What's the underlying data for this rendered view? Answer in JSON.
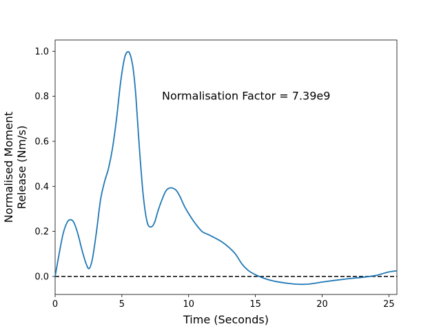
{
  "chart_data": {
    "type": "line",
    "title": "",
    "xlabel": "Time (Seconds)",
    "ylabel_lines": [
      "Normalised Moment",
      "Release (Nm/s)"
    ],
    "xlim": [
      0,
      25.6
    ],
    "ylim": [
      -0.08,
      1.05
    ],
    "xticks": [
      0,
      5,
      10,
      15,
      20,
      25
    ],
    "yticks": [
      0.0,
      0.2,
      0.4,
      0.6,
      0.8,
      1.0
    ],
    "ytick_labels": [
      "0.0",
      "0.2",
      "0.4",
      "0.6",
      "0.8",
      "1.0"
    ],
    "grid": false,
    "annotation": {
      "text": "Normalisation Factor = 7.39e9",
      "x": 8.0,
      "y": 0.8
    },
    "reference_line": {
      "y": 0.0,
      "style": "dashed",
      "color": "#000000"
    },
    "series": [
      {
        "color": "#1f77b4",
        "x": [
          0,
          0.3,
          0.6,
          0.9,
          1.15,
          1.4,
          1.7,
          2.0,
          2.3,
          2.55,
          2.8,
          3.1,
          3.4,
          3.7,
          4.0,
          4.3,
          4.6,
          4.9,
          5.2,
          5.45,
          5.65,
          5.85,
          6.05,
          6.3,
          6.6,
          6.9,
          7.2,
          7.45,
          7.7,
          8.0,
          8.3,
          8.6,
          8.9,
          9.1,
          9.35,
          9.7,
          10.1,
          10.5,
          11.0,
          11.5,
          12.0,
          12.5,
          13.0,
          13.5,
          14.0,
          14.5,
          15.0,
          15.5,
          16.0,
          16.5,
          17.0,
          17.5,
          18.0,
          18.5,
          19.0,
          19.5,
          20.0,
          21.0,
          22.0,
          23.0,
          24.0,
          24.5,
          25.0,
          25.6
        ],
        "y": [
          0.0,
          0.1,
          0.19,
          0.24,
          0.252,
          0.24,
          0.19,
          0.12,
          0.06,
          0.035,
          0.08,
          0.2,
          0.34,
          0.42,
          0.48,
          0.57,
          0.7,
          0.86,
          0.97,
          0.998,
          0.98,
          0.92,
          0.8,
          0.58,
          0.36,
          0.24,
          0.22,
          0.24,
          0.29,
          0.34,
          0.38,
          0.393,
          0.39,
          0.38,
          0.355,
          0.31,
          0.27,
          0.235,
          0.2,
          0.185,
          0.17,
          0.153,
          0.13,
          0.1,
          0.055,
          0.025,
          0.008,
          -0.005,
          -0.015,
          -0.022,
          -0.027,
          -0.031,
          -0.034,
          -0.035,
          -0.034,
          -0.03,
          -0.025,
          -0.017,
          -0.01,
          -0.004,
          0.004,
          0.012,
          0.02,
          0.025
        ]
      }
    ]
  }
}
